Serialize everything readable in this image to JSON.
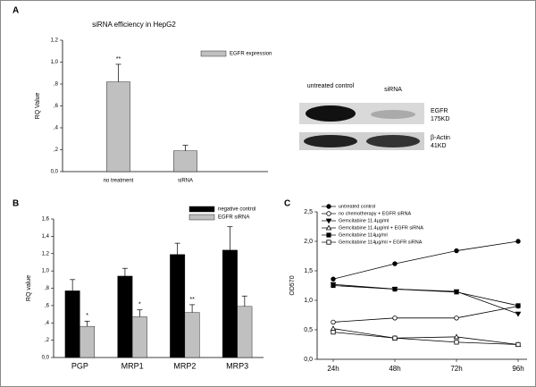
{
  "chart_data": [
    {
      "type": "bar",
      "panel": "A",
      "title": "siRNA efficiency in HepG2",
      "ylabel": "RQ Value",
      "categories": [
        "no treatment",
        "siRNA"
      ],
      "series": [
        {
          "name": "EGFR expression",
          "color": "#c0c0c0",
          "values": [
            0.82,
            0.19
          ],
          "errors": [
            0.16,
            0.05
          ],
          "annotations": [
            "**",
            null
          ]
        }
      ],
      "ylim": [
        0,
        1.2
      ],
      "yticks": [
        {
          "value": 0,
          "label": "0,0"
        },
        {
          "value": 0.2,
          "label": ",2"
        },
        {
          "value": 0.4,
          "label": ",4"
        },
        {
          "value": 0.6,
          "label": ",6"
        },
        {
          "value": 0.8,
          "label": ",8"
        },
        {
          "value": 1.0,
          "label": "1,0"
        },
        {
          "value": 1.2,
          "label": "1,2"
        }
      ]
    },
    {
      "type": "bar",
      "panel": "B",
      "ylabel": "RQ value",
      "categories": [
        "PGP",
        "MRP1",
        "MRP2",
        "MRP3"
      ],
      "series": [
        {
          "name": "negative control",
          "color": "#000000",
          "values": [
            0.77,
            0.94,
            1.19,
            1.24
          ],
          "errors": [
            0.13,
            0.09,
            0.13,
            0.27
          ],
          "annotations": [
            null,
            null,
            null,
            null
          ]
        },
        {
          "name": "EGFR siRNA",
          "color": "#c0c0c0",
          "values": [
            0.36,
            0.47,
            0.52,
            0.59
          ],
          "errors": [
            0.06,
            0.08,
            0.09,
            0.12
          ],
          "annotations": [
            "*",
            "*",
            "**",
            null
          ]
        }
      ],
      "ylim": [
        0,
        1.6
      ],
      "yticks": [
        {
          "value": 0,
          "label": "0,0"
        },
        {
          "value": 0.2,
          "label": ",2"
        },
        {
          "value": 0.4,
          "label": ",4"
        },
        {
          "value": 0.6,
          "label": ",6"
        },
        {
          "value": 0.8,
          "label": ",8"
        },
        {
          "value": 1.0,
          "label": "1,0"
        },
        {
          "value": 1.2,
          "label": "1,2"
        },
        {
          "value": 1.4,
          "label": "1,4"
        },
        {
          "value": 1.6,
          "label": "1,6"
        }
      ]
    },
    {
      "type": "line",
      "panel": "C",
      "ylabel": "OD570",
      "categories": [
        "24h",
        "48h",
        "72h",
        "96h"
      ],
      "series": [
        {
          "name": "untreated control",
          "color": "#000000",
          "marker": "circle",
          "filled": true,
          "values": [
            1.36,
            1.62,
            1.84,
            2.0
          ]
        },
        {
          "name": "no chemotherapy + EGFR siRNA",
          "color": "#000000",
          "marker": "circle",
          "filled": false,
          "values": [
            0.63,
            0.7,
            0.7,
            0.9
          ]
        },
        {
          "name": "Gemcitabine 11.4µg/ml",
          "color": "#000000",
          "marker": "triangle-down",
          "filled": true,
          "values": [
            1.27,
            1.19,
            1.15,
            0.77
          ]
        },
        {
          "name": "Gemcitabine 11.4µg/ml + EGFR siRNA",
          "color": "#000000",
          "marker": "triangle-up",
          "filled": false,
          "values": [
            0.52,
            0.36,
            0.38,
            0.25
          ]
        },
        {
          "name": "Gemcitabine 114µg/ml",
          "color": "#000000",
          "marker": "square",
          "filled": true,
          "values": [
            1.25,
            1.19,
            1.14,
            0.91
          ]
        },
        {
          "name": "Gemcitabine 114µg/ml + EGFR siRNA",
          "color": "#000000",
          "marker": "square",
          "filled": false,
          "values": [
            0.46,
            0.36,
            0.29,
            0.25
          ]
        }
      ],
      "ylim": [
        0,
        2.5
      ],
      "yticks": [
        {
          "value": 0,
          "label": "0,0"
        },
        {
          "value": 0.5,
          "label": "0,5"
        },
        {
          "value": 1.0,
          "label": "1,0"
        },
        {
          "value": 1.5,
          "label": "1,5"
        },
        {
          "value": 2.0,
          "label": "2,0"
        },
        {
          "value": 2.5,
          "label": "2,5"
        }
      ]
    }
  ],
  "blot": {
    "lanes": [
      "untreated control",
      "siRNA"
    ],
    "bands": [
      {
        "name": "EGFR",
        "size": "175KD"
      },
      {
        "name": "β-Actin",
        "size": "41KD"
      }
    ]
  }
}
